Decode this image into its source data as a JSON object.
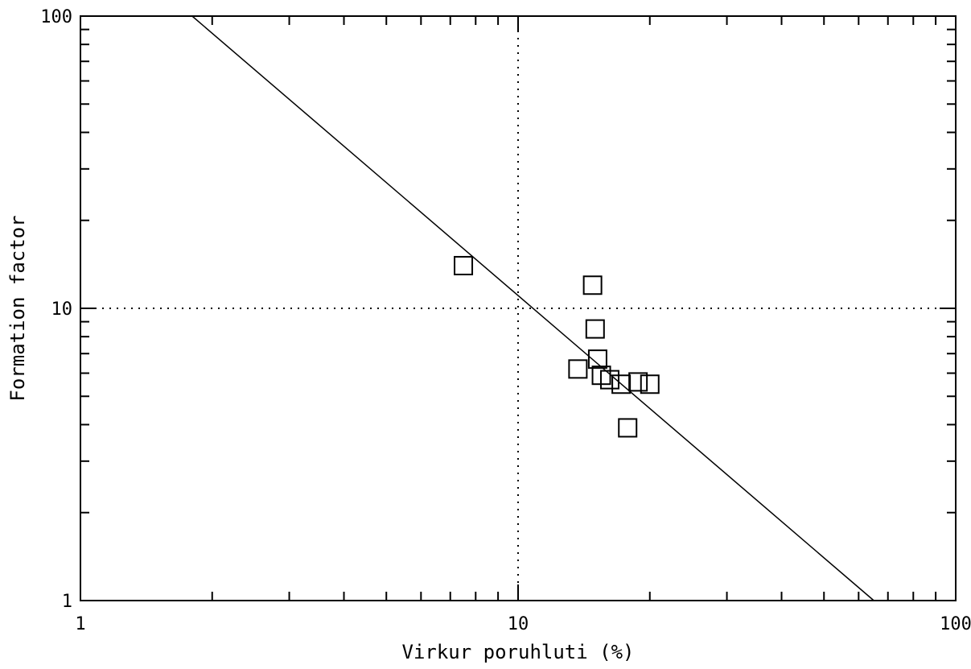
{
  "chart_data": {
    "type": "scatter",
    "xscale": "log",
    "yscale": "log",
    "xlim": [
      1,
      100
    ],
    "ylim": [
      1,
      100
    ],
    "xlabel": "Virkur poruhluti (%)",
    "ylabel": "Formation factor",
    "x_ticks": [
      {
        "value": 1,
        "label": "1"
      },
      {
        "value": 10,
        "label": "10"
      },
      {
        "value": 100,
        "label": "100"
      }
    ],
    "y_ticks": [
      {
        "value": 1,
        "label": "1"
      },
      {
        "value": 10,
        "label": "10"
      },
      {
        "value": 100,
        "label": "100"
      }
    ],
    "reference_lines": [
      {
        "axis": "x",
        "value": 10,
        "style": "dotted"
      },
      {
        "axis": "y",
        "value": 10,
        "style": "dotted"
      }
    ],
    "points": [
      {
        "x": 7.5,
        "y": 14.0
      },
      {
        "x": 14.8,
        "y": 12.0
      },
      {
        "x": 15.0,
        "y": 8.5
      },
      {
        "x": 15.2,
        "y": 6.7
      },
      {
        "x": 13.7,
        "y": 6.2
      },
      {
        "x": 15.5,
        "y": 5.9
      },
      {
        "x": 16.2,
        "y": 5.7
      },
      {
        "x": 17.2,
        "y": 5.5
      },
      {
        "x": 18.8,
        "y": 5.6
      },
      {
        "x": 20.0,
        "y": 5.5
      },
      {
        "x": 17.8,
        "y": 3.9
      }
    ],
    "fit_line": [
      {
        "x": 1.8,
        "y": 100
      },
      {
        "x": 65,
        "y": 1
      }
    ]
  }
}
